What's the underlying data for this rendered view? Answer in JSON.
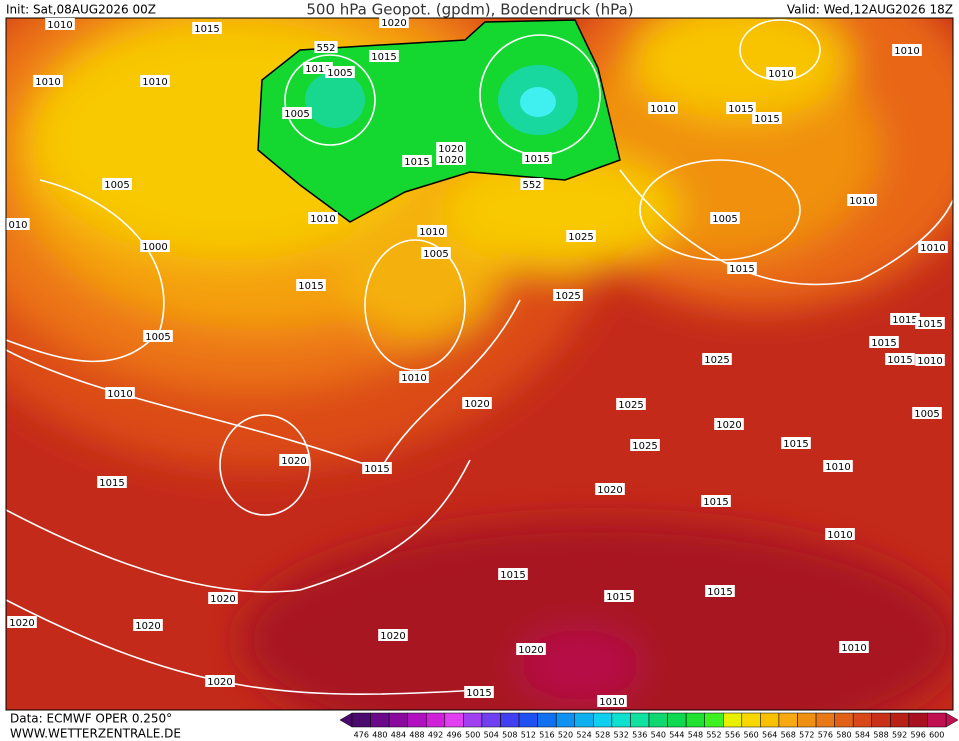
{
  "header": {
    "init": "Init: Sat,08AUG2026 00Z",
    "title": "500 hPa Geopot. (gpdm), Bodendruck (hPa)",
    "valid": "Valid: Wed,12AUG2026 18Z"
  },
  "isobar_labels": [
    "1010",
    "1015",
    "1010",
    "1010",
    "552",
    "1010",
    "1005",
    "1015",
    "1020",
    "1005",
    "1020",
    "1020",
    "1015",
    "1015",
    "552",
    "1005",
    "010",
    "1010",
    "1000",
    "1010",
    "1005",
    "1025",
    "1015",
    "1025",
    "1005",
    "1010",
    "1010",
    "1020",
    "1020",
    "1015",
    "1015",
    "1025",
    "1025",
    "1020",
    "1015",
    "1020",
    "1025",
    "1010",
    "1015",
    "1015",
    "1010",
    "1010",
    "1005",
    "1015",
    "1010",
    "1010",
    "1015",
    "1015",
    "1015",
    "1015",
    "1010",
    "1005",
    "1015",
    "1010",
    "1010",
    "1015",
    "1015",
    "1015",
    "1020",
    "1020",
    "1020",
    "1020",
    "1020",
    "1010",
    "1020",
    "1015",
    "1010"
  ],
  "footer": {
    "source": "Data: ECMWF OPER 0.250°",
    "site": "WWW.WETTERZENTRALE.DE"
  },
  "colorbar": {
    "labels": [
      476,
      480,
      484,
      488,
      492,
      496,
      500,
      504,
      508,
      512,
      516,
      520,
      524,
      528,
      532,
      536,
      540,
      544,
      548,
      552,
      556,
      560,
      564,
      568,
      572,
      576,
      580,
      584,
      588,
      592,
      596,
      600
    ],
    "colors": [
      "#4b0a6e",
      "#6a0a8a",
      "#8a0aa0",
      "#b010c0",
      "#d020d8",
      "#e040f0",
      "#a040f0",
      "#7040f0",
      "#4040f0",
      "#2050f0",
      "#1070f0",
      "#1090f0",
      "#10b0f0",
      "#10d0f0",
      "#10e0d0",
      "#10e0a0",
      "#10d870",
      "#10d850",
      "#20e030",
      "#40f020",
      "#e8f000",
      "#f8d800",
      "#f8c000",
      "#f8a810",
      "#f09010",
      "#e87818",
      "#e06018",
      "#d84818",
      "#c83018",
      "#b82018",
      "#a81020",
      "#c01050"
    ]
  }
}
